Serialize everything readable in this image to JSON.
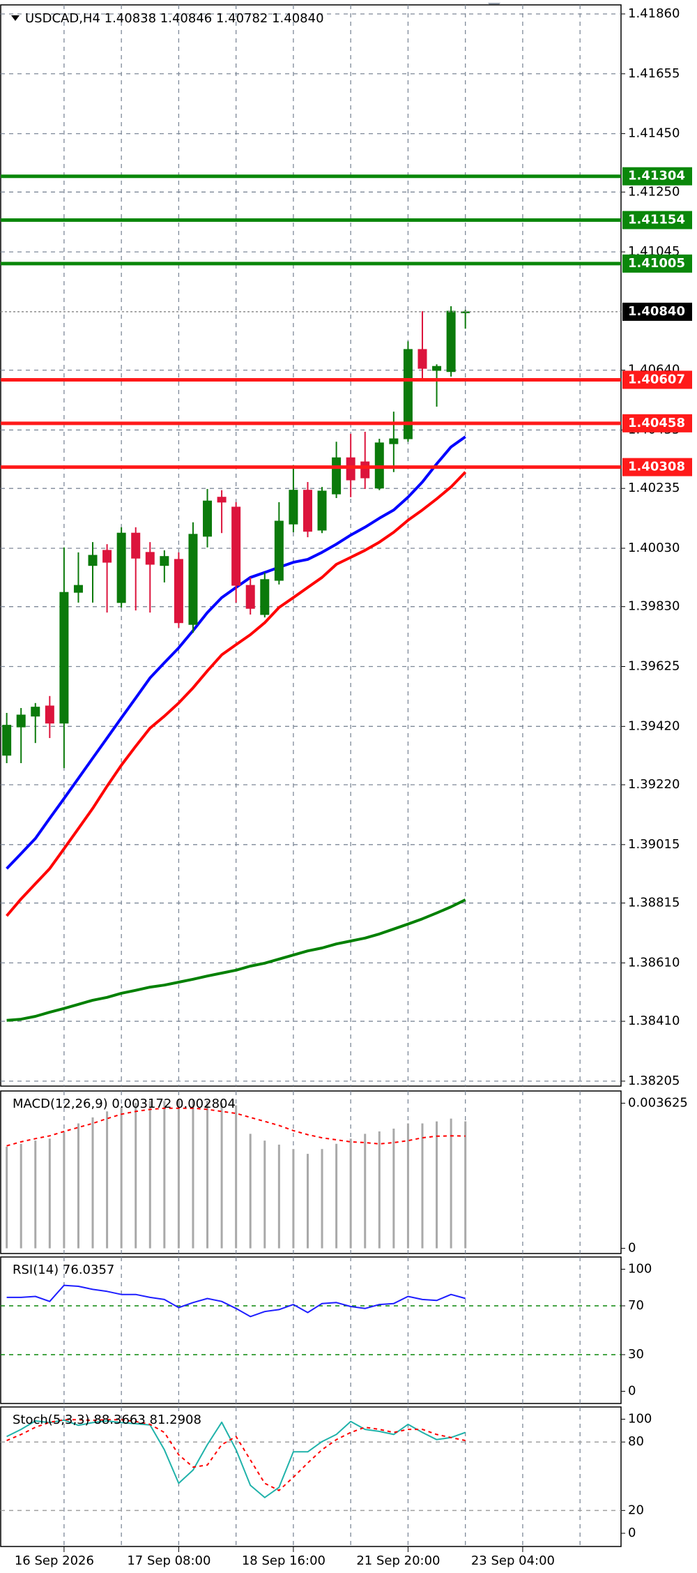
{
  "chart_data": [
    {
      "type": "candlestick",
      "title": "USDCAD,H4 1.40838 1.40846 1.40782 1.40840",
      "open": [
        1.39321,
        1.39418,
        1.39455,
        1.3949,
        1.39431,
        1.39879,
        1.39971,
        1.40023,
        1.39844,
        1.40082,
        1.40016,
        1.39971,
        1.39992,
        1.39769,
        1.40071,
        1.40205,
        1.40171,
        1.39903,
        1.39803,
        1.3992,
        1.40113,
        1.40229,
        1.40092,
        1.40216,
        1.4034,
        1.40326,
        1.40236,
        1.40388,
        1.40405,
        1.40711,
        1.40639,
        1.40635,
        1.40838
      ],
      "high": [
        1.39466,
        1.39483,
        1.395,
        1.39524,
        1.40033,
        1.40016,
        1.40051,
        1.40044,
        1.40102,
        1.40102,
        1.40051,
        1.40023,
        1.40016,
        1.40119,
        1.40233,
        1.40229,
        1.40188,
        1.3993,
        1.39947,
        1.40188,
        1.40315,
        1.40257,
        1.4024,
        1.40395,
        1.40422,
        1.40429,
        1.40405,
        1.40498,
        1.40739,
        1.40842,
        1.4066,
        1.40859,
        1.40846
      ],
      "low": [
        1.39294,
        1.39294,
        1.39363,
        1.3938,
        1.39277,
        1.39844,
        1.39844,
        1.3981,
        1.39827,
        1.39817,
        1.3981,
        1.39913,
        1.39758,
        1.39741,
        1.40033,
        1.40082,
        1.39844,
        1.39803,
        1.39793,
        1.39906,
        1.40085,
        1.40068,
        1.40082,
        1.40202,
        1.40205,
        1.40233,
        1.40229,
        1.40291,
        1.40395,
        1.40601,
        1.40515,
        1.40618,
        1.40782
      ],
      "close": [
        1.39424,
        1.39459,
        1.39486,
        1.39431,
        1.39879,
        1.39903,
        1.40006,
        1.39982,
        1.40082,
        1.39996,
        1.39975,
        1.40002,
        1.39775,
        1.40078,
        1.40192,
        1.40188,
        1.39903,
        1.39824,
        1.39923,
        1.40123,
        1.40229,
        1.40088,
        1.40226,
        1.4034,
        1.40264,
        1.40271,
        1.40391,
        1.40405,
        1.40711,
        1.40646,
        1.40653,
        1.40842,
        1.4084
      ],
      "up_color": "#0b7a0b",
      "down_color": "#dc143c",
      "lines": [
        {
          "color": "#0000ff",
          "values": [
            1.38933,
            1.38984,
            1.39036,
            1.39105,
            1.39173,
            1.39242,
            1.39311,
            1.3938,
            1.39449,
            1.39517,
            1.39586,
            1.39638,
            1.39689,
            1.39748,
            1.3981,
            1.39861,
            1.39896,
            1.3993,
            1.39947,
            1.39965,
            1.39982,
            1.39992,
            1.40016,
            1.40044,
            1.40075,
            1.40102,
            1.40133,
            1.40161,
            1.40205,
            1.40257,
            1.40319,
            1.40377,
            1.40412
          ]
        },
        {
          "color": "#ff0000",
          "values": [
            1.38771,
            1.38829,
            1.38881,
            1.38933,
            1.39001,
            1.3907,
            1.39139,
            1.39215,
            1.39287,
            1.39352,
            1.39414,
            1.39455,
            1.395,
            1.39552,
            1.3961,
            1.39665,
            1.397,
            1.39734,
            1.39775,
            1.39827,
            1.39861,
            1.39896,
            1.3993,
            1.39975,
            1.39999,
            1.40023,
            1.40051,
            1.40085,
            1.40126,
            1.40161,
            1.40199,
            1.4024,
            1.40291
          ]
        },
        {
          "color": "#008000",
          "values": [
            1.38413,
            1.38417,
            1.38427,
            1.38441,
            1.38454,
            1.38468,
            1.38482,
            1.38492,
            1.38506,
            1.38516,
            1.38527,
            1.38534,
            1.38544,
            1.38554,
            1.38565,
            1.38575,
            1.38585,
            1.38599,
            1.38609,
            1.38623,
            1.38637,
            1.38651,
            1.38661,
            1.38675,
            1.38685,
            1.38695,
            1.38709,
            1.38726,
            1.38743,
            1.38761,
            1.38781,
            1.38802,
            1.38826
          ]
        }
      ],
      "levels": [
        {
          "value": 1.41304,
          "color": "#0a870a"
        },
        {
          "value": 1.41154,
          "color": "#0a870a"
        },
        {
          "value": 1.41005,
          "color": "#0a870a"
        },
        {
          "value": 1.40607,
          "color": "#ff1a1a"
        },
        {
          "value": 1.40458,
          "color": "#ff1a1a"
        },
        {
          "value": 1.40308,
          "color": "#ff1a1a"
        }
      ],
      "last_price_label": "1.40840",
      "xlim": [
        -0.42,
        42.86
      ],
      "xgrid": [
        4,
        8,
        12,
        16,
        20,
        24,
        28,
        32,
        36,
        40
      ],
      "xticks": [
        {
          "value": 4,
          "label": "16 Sep 2026"
        },
        {
          "value": 12,
          "label": "17 Sep 08:00"
        },
        {
          "value": 20,
          "label": "18 Sep 16:00"
        },
        {
          "value": 28,
          "label": "21 Sep 20:00"
        },
        {
          "value": 36,
          "label": "23 Sep 04:00"
        }
      ],
      "ylim": [
        1.38188,
        1.41891
      ],
      "yticks": [
        {
          "value": 1.4186,
          "label": "1.41860"
        },
        {
          "value": 1.41655,
          "label": "1.41655"
        },
        {
          "value": 1.4145,
          "label": "1.41450"
        },
        {
          "value": 1.4125,
          "label": "1.41250"
        },
        {
          "value": 1.41045,
          "label": "1.41045"
        },
        {
          "value": 1.4064,
          "label": "1.40640"
        },
        {
          "value": 1.40435,
          "label": "1.40435"
        },
        {
          "value": 1.40235,
          "label": "1.40235"
        },
        {
          "value": 1.4003,
          "label": "1.40030"
        },
        {
          "value": 1.3983,
          "label": "1.39830"
        },
        {
          "value": 1.39625,
          "label": "1.39625"
        },
        {
          "value": 1.3942,
          "label": "1.39420"
        },
        {
          "value": 1.3922,
          "label": "1.39220"
        },
        {
          "value": 1.39015,
          "label": "1.39015"
        },
        {
          "value": 1.38815,
          "label": "1.38815"
        },
        {
          "value": 1.3861,
          "label": "1.38610"
        },
        {
          "value": 1.3841,
          "label": "1.38410"
        },
        {
          "value": 1.38205,
          "label": "1.38205"
        }
      ],
      "grid": true
    },
    {
      "type": "macd",
      "title": "MACD(12,26,9) 0.003172 0.002804",
      "series": [
        {
          "kind": "bar",
          "color": "#a9a9a9",
          "values": [
            0.00254,
            0.00261,
            0.00269,
            0.00274,
            0.00292,
            0.00312,
            0.00327,
            0.00342,
            0.00352,
            0.00363,
            0.00368,
            0.00368,
            0.0037,
            0.0037,
            0.00368,
            0.00363,
            0.00357,
            0.00286,
            0.00269,
            0.00259,
            0.00248,
            0.00236,
            0.00248,
            0.00261,
            0.00274,
            0.00286,
            0.00292,
            0.00299,
            0.00312,
            0.00312,
            0.00317,
            0.00324,
            0.003172
          ]
        },
        {
          "kind": "line",
          "dash": true,
          "color": "#ff0000",
          "values": [
            0.00256,
            0.00266,
            0.00274,
            0.00281,
            0.00292,
            0.00302,
            0.00312,
            0.00324,
            0.00335,
            0.00342,
            0.00347,
            0.0035,
            0.0035,
            0.0035,
            0.00347,
            0.00342,
            0.00337,
            0.00327,
            0.00317,
            0.00307,
            0.00294,
            0.00284,
            0.00276,
            0.00271,
            0.00266,
            0.00264,
            0.00261,
            0.00264,
            0.00269,
            0.00276,
            0.0028,
            0.00281,
            0.002804
          ]
        }
      ],
      "ylim": [
        -0.00013,
        0.00393
      ],
      "yticks": [
        0.003625,
        0
      ]
    },
    {
      "type": "line",
      "title": "RSI(14) 76.0357",
      "series": [
        {
          "kind": "line",
          "color": "#1e1eff",
          "values": [
            76.9,
            76.9,
            77.7,
            73.6,
            86.8,
            86.0,
            83.5,
            81.8,
            79.3,
            79.3,
            76.9,
            75.2,
            68.6,
            72.7,
            76.0,
            73.6,
            67.8,
            61.2,
            65.3,
            66.9,
            71.1,
            64.5,
            71.9,
            72.7,
            69.4,
            67.8,
            71.1,
            71.9,
            77.7,
            75.2,
            74.4,
            79.3,
            76.0357
          ]
        }
      ],
      "ylim": [
        -10,
        110
      ],
      "yticks": [
        100,
        70,
        30,
        0
      ],
      "hlines": [
        70,
        30
      ],
      "hline_color": "#0a870a"
    },
    {
      "type": "line",
      "title": "Stoch(5,3,3) 88.3663 81.2908",
      "series": [
        {
          "kind": "line",
          "color": "#20b2aa",
          "values": [
            84.8,
            91.1,
            98.5,
            97.0,
            99.2,
            94.6,
            97.0,
            98.5,
            97.0,
            96.0,
            95.0,
            73.2,
            43.8,
            55.4,
            77.7,
            97.3,
            73.2,
            42.0,
            31.3,
            40.2,
            71.4,
            71.4,
            80.4,
            86.6,
            98.0,
            91.1,
            89.3,
            86.6,
            95.5,
            88.4,
            82.1,
            83.9,
            88.3663
          ]
        },
        {
          "kind": "line",
          "dash": true,
          "color": "#ff0000",
          "values": [
            81.3,
            86.6,
            92.9,
            97.3,
            99.5,
            99.5,
            99.0,
            99.5,
            99.5,
            98.0,
            95.5,
            88.4,
            68.8,
            58.0,
            59.8,
            77.7,
            84.8,
            64.3,
            43.8,
            37.5,
            49.1,
            61.6,
            73.2,
            82.1,
            88.4,
            92.9,
            91.1,
            88.4,
            91.1,
            91.1,
            86.6,
            83.9,
            81.2908
          ]
        }
      ],
      "ylim": [
        -11.6,
        110.7
      ],
      "yticks": [
        100,
        80,
        20,
        0
      ],
      "hlines": [
        80,
        20
      ],
      "hline_color": "#a0a0a0"
    }
  ]
}
